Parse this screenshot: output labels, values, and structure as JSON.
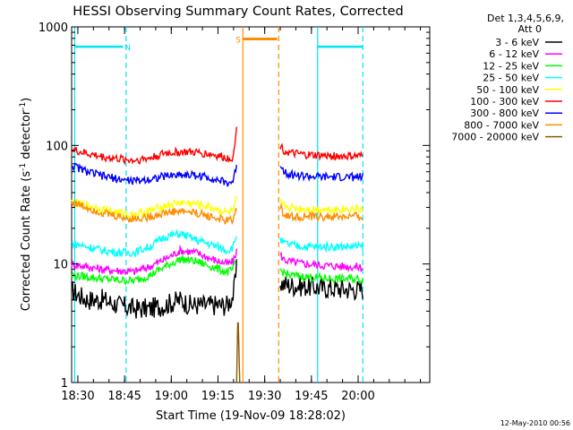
{
  "chart_data": {
    "type": "line",
    "title": "HESSI Observing Summary Count Rates, Corrected",
    "xlabel": "Start Time (19-Nov-09 18:28:02)",
    "ylabel": "Corrected Count Rate (s",
    "ylabel_exp1": "-1",
    "ylabel_mid": " detector",
    "ylabel_exp2": "-1",
    "ylabel_end": ")",
    "y_scale": "log",
    "ylim": [
      1,
      1000
    ],
    "xlim_min": [
      0,
      115
    ],
    "x_origin": "18:28:02",
    "yticks": [
      {
        "value": 1,
        "label": "1"
      },
      {
        "value": 10,
        "label": "10"
      },
      {
        "value": 100,
        "label": "100"
      },
      {
        "value": 1000,
        "label": "1000"
      }
    ],
    "xticks": [
      {
        "t": 2,
        "label": "18:30"
      },
      {
        "t": 17,
        "label": "18:45"
      },
      {
        "t": 32,
        "label": "19:00"
      },
      {
        "t": 47,
        "label": "19:15"
      },
      {
        "t": 62,
        "label": "19:30"
      },
      {
        "t": 77,
        "label": "19:45"
      },
      {
        "t": 92,
        "label": "20:00"
      }
    ],
    "legend": {
      "placement": "right",
      "header_line1": "Det 1,3,4,5,6,9,",
      "header_line2": "Att 0"
    },
    "series": [
      {
        "name": "3 - 6 keV",
        "color": "#000000",
        "segments": [
          {
            "t": [
              0,
              2,
              5,
              10,
              15,
              20,
              25,
              30,
              35,
              38,
              45,
              50,
              52,
              53
            ],
            "v": [
              6,
              5.5,
              5,
              5,
              4.5,
              4.2,
              4.2,
              4.5,
              5,
              4.5,
              4.5,
              4.5,
              5.5,
              9
            ]
          },
          {
            "t": [
              67,
              68,
              70,
              75,
              80,
              85,
              90,
              93.5
            ],
            "v": [
              7,
              6.8,
              6.6,
              6.5,
              6.3,
              6.2,
              6.1,
              6.1
            ]
          }
        ]
      },
      {
        "name": "6 - 12 keV",
        "color": "#ff00ff",
        "segments": [
          {
            "t": [
              0,
              5,
              10,
              15,
              20,
              25,
              30,
              35,
              40,
              45,
              50,
              52,
              53
            ],
            "v": [
              10,
              9.5,
              9,
              8.8,
              8.6,
              9.5,
              11,
              13,
              12.5,
              11,
              10,
              10.5,
              13
            ]
          },
          {
            "t": [
              67,
              68,
              70,
              75,
              80,
              85,
              90,
              93.5
            ],
            "v": [
              12,
              11,
              10.5,
              10,
              9.8,
              9.6,
              9.5,
              9.4
            ]
          }
        ]
      },
      {
        "name": "12 - 25 keV",
        "color": "#00ff00",
        "segments": [
          {
            "t": [
              0,
              5,
              10,
              15,
              20,
              25,
              30,
              35,
              40,
              45,
              50,
              52,
              53
            ],
            "v": [
              8,
              7.8,
              7.5,
              7.3,
              7.2,
              8,
              9.5,
              11,
              10.5,
              9.5,
              8.5,
              9,
              11
            ]
          },
          {
            "t": [
              67,
              68,
              70,
              75,
              80,
              85,
              90,
              93.5
            ],
            "v": [
              9,
              8.5,
              8,
              7.8,
              7.6,
              7.5,
              7.5,
              7.4
            ]
          }
        ]
      },
      {
        "name": "25 - 50 keV",
        "color": "#00ffff",
        "segments": [
          {
            "t": [
              0,
              5,
              10,
              15,
              20,
              25,
              30,
              35,
              40,
              45,
              50,
              52,
              53
            ],
            "v": [
              15,
              14,
              13,
              12.5,
              12.5,
              14,
              17,
              18,
              16,
              14.5,
              13,
              14,
              18
            ]
          },
          {
            "t": [
              67,
              68,
              70,
              75,
              80,
              85,
              90,
              93.5
            ],
            "v": [
              16,
              15,
              14.5,
              14,
              14,
              14,
              14,
              14
            ]
          }
        ]
      },
      {
        "name": "50 - 100 keV",
        "color": "#ffff00",
        "segments": [
          {
            "t": [
              0,
              5,
              10,
              15,
              20,
              25,
              30,
              35,
              40,
              45,
              50,
              52,
              53
            ],
            "v": [
              33,
              31,
              29,
              27,
              26,
              28,
              31,
              33,
              32,
              30,
              27,
              28,
              35
            ]
          },
          {
            "t": [
              67,
              68,
              70,
              75,
              80,
              85,
              90,
              93.5
            ],
            "v": [
              33,
              31,
              30,
              29,
              29,
              29,
              29,
              29
            ]
          }
        ]
      },
      {
        "name": "100 - 300 keV",
        "color": "#ff0000",
        "segments": [
          {
            "t": [
              0,
              5,
              10,
              15,
              20,
              25,
              30,
              35,
              40,
              45,
              50,
              52,
              53
            ],
            "v": [
              92,
              85,
              80,
              77,
              75,
              78,
              86,
              88,
              87,
              84,
              78,
              80,
              140
            ]
          },
          {
            "t": [
              67,
              68,
              70,
              75,
              80,
              85,
              90,
              93.5
            ],
            "v": [
              100,
              92,
              86,
              83,
              82,
              81,
              81,
              81
            ]
          }
        ]
      },
      {
        "name": "300 - 800 keV",
        "color": "#0000ff",
        "segments": [
          {
            "t": [
              0,
              5,
              10,
              15,
              20,
              25,
              30,
              35,
              40,
              45,
              50,
              52,
              53
            ],
            "v": [
              68,
              60,
              55,
              52,
              50,
              52,
              55,
              57,
              56,
              53,
              48,
              50,
              70
            ]
          },
          {
            "t": [
              67,
              68,
              70,
              75,
              80,
              85,
              90,
              93.5
            ],
            "v": [
              70,
              62,
              57,
              55,
              54,
              54,
              54,
              54
            ]
          }
        ]
      },
      {
        "name": "800 - 7000 keV",
        "color": "#ff8c00",
        "segments": [
          {
            "t": [
              0,
              5,
              10,
              15,
              20,
              25,
              30,
              35,
              40,
              45,
              50,
              52,
              53
            ],
            "v": [
              33,
              30,
              27,
              25,
              24,
              25,
              27,
              28,
              27,
              25,
              23,
              24,
              30
            ]
          },
          {
            "t": [
              67,
              68,
              70,
              75,
              80,
              85,
              90,
              93.5
            ],
            "v": [
              30,
              27,
              25,
              25,
              25,
              25,
              25,
              25
            ]
          }
        ]
      },
      {
        "name": "7000 - 20000 keV",
        "color": "#8b5a00",
        "segments": [
          {
            "t": [
              53,
              53.4,
              54
            ],
            "v": [
              1,
              4,
              1
            ]
          }
        ]
      }
    ],
    "attenuator_lines": [
      {
        "t": 1,
        "color": "#00e5ee",
        "style": "solid"
      },
      {
        "t": 17.5,
        "color": "#00e5ee",
        "style": "dashed"
      },
      {
        "t": 55,
        "color": "#ff8c00",
        "style": "solid"
      },
      {
        "t": 66.5,
        "color": "#ff8c00",
        "style": "dashed"
      },
      {
        "t": 79,
        "color": "#00e5ee",
        "style": "solid"
      },
      {
        "t": 93.5,
        "color": "#00e5ee",
        "style": "dashed"
      }
    ],
    "annotations": [
      {
        "label": "N",
        "color": "#00e5ee",
        "t": 18,
        "bar_start": 1,
        "bar_end": 16.5,
        "value": 680
      },
      {
        "label": "S",
        "color": "#ff8c00",
        "t": 53.5,
        "bar_start": 55,
        "bar_end": 66,
        "value": 790
      },
      {
        "label": "",
        "color": "#00e5ee",
        "t": 0,
        "bar_start": 79,
        "bar_end": 93.5,
        "value": 680
      }
    ],
    "date_stamp": "12-May-2010 00:56"
  }
}
